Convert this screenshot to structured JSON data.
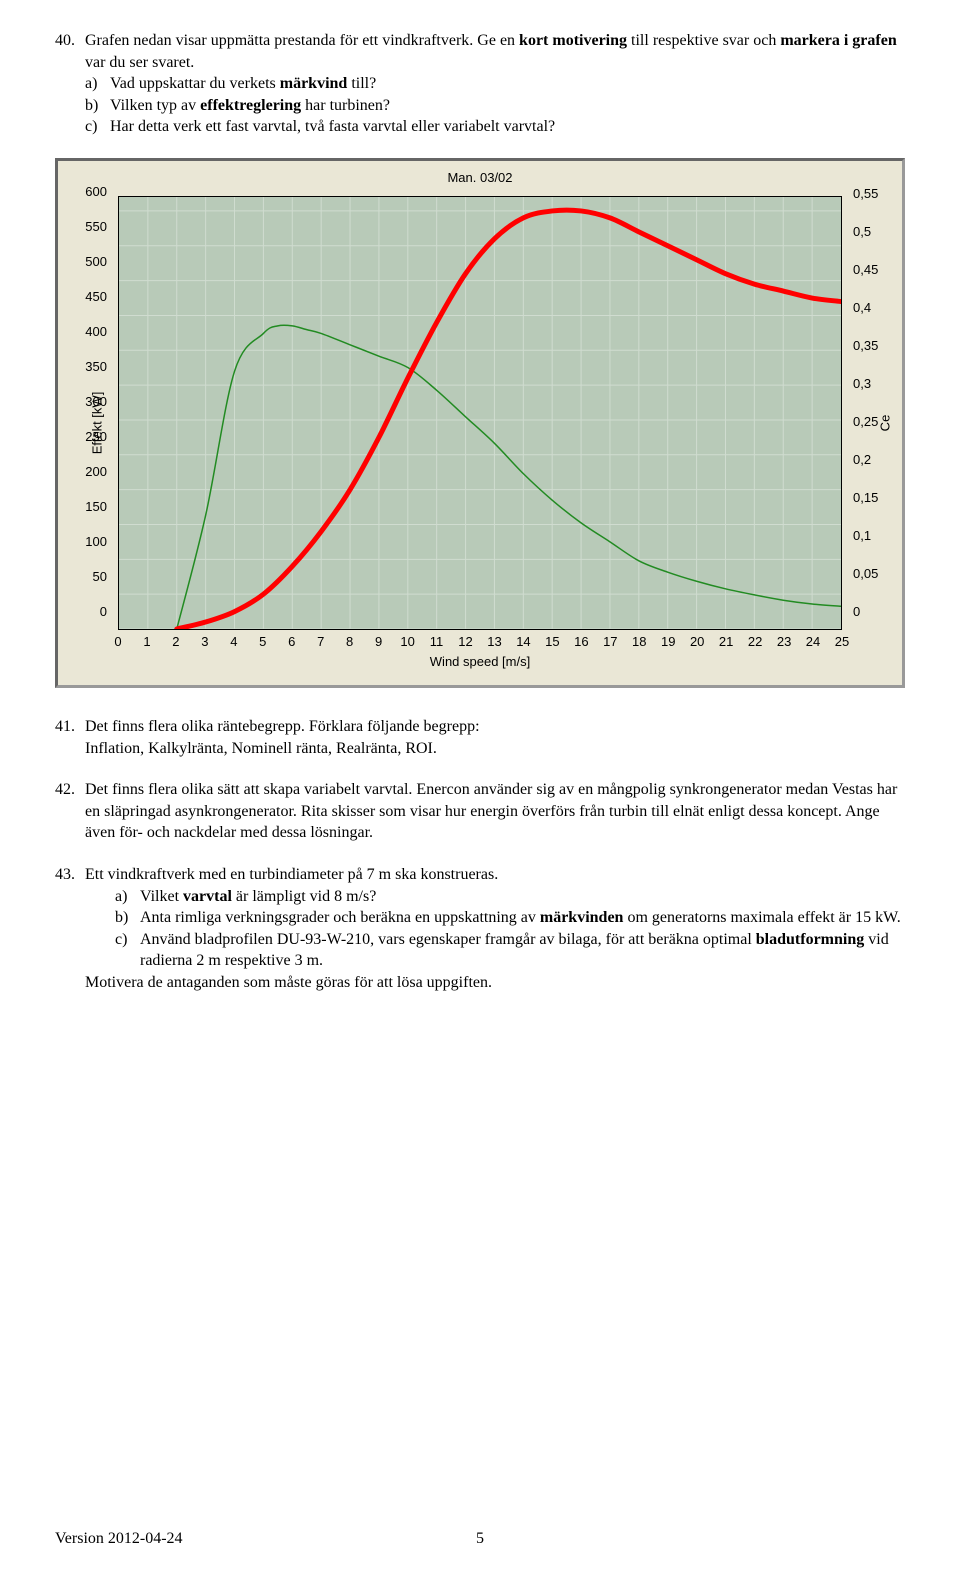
{
  "q40": {
    "num": "40.",
    "text_before": "Grafen nedan visar uppmätta prestanda för ett vindkraftverk. Ge en ",
    "bold1": "kort motivering",
    "text_mid": " till respektive svar och ",
    "bold2": "markera i grafen",
    "text_after": " var du ser svaret.",
    "a_letter": "a)",
    "a_before": "Vad uppskattar du verkets ",
    "a_bold": "märkvind",
    "a_after": " till?",
    "b_letter": "b)",
    "b_before": "Vilken typ av ",
    "b_bold": "effektreglering",
    "b_after": " har turbinen?",
    "c_letter": "c)",
    "c_text": "Har detta verk ett fast varvtal, två fasta varvtal eller variabelt varvtal?"
  },
  "chart": {
    "title": "Man. 03/02",
    "x_label": "Wind speed [m/s]",
    "y_left_label": "Effekt [kW]",
    "y_right_label": "Ce",
    "background_color": "#b8cab8",
    "panel_color": "#eae7d6",
    "grid_color": "#d0dcd0",
    "x_ticks": [
      0,
      1,
      2,
      3,
      4,
      5,
      6,
      7,
      8,
      9,
      10,
      11,
      12,
      13,
      14,
      15,
      16,
      17,
      18,
      19,
      20,
      21,
      22,
      23,
      24,
      25
    ],
    "xlim": [
      0,
      25
    ],
    "y_left_ticks": [
      0,
      50,
      100,
      150,
      200,
      250,
      300,
      350,
      400,
      450,
      500,
      550,
      600
    ],
    "y_left_lim": [
      0,
      620
    ],
    "y_right_ticks": [
      0,
      0.05,
      0.1,
      0.15,
      0.2,
      0.25,
      0.3,
      0.35,
      0.4,
      0.45,
      0.5,
      0.55
    ],
    "y_right_lim": [
      0,
      0.57
    ],
    "y_right_labels": [
      "0",
      "0,05",
      "0,1",
      "0,15",
      "0,2",
      "0,25",
      "0,3",
      "0,35",
      "0,4",
      "0,45",
      "0,5",
      "0,55"
    ],
    "series_effekt": {
      "color": "#ff0000",
      "width": 5,
      "x": [
        2,
        3,
        4,
        5,
        6,
        7,
        8,
        9,
        10,
        11,
        12,
        13,
        14,
        15,
        16,
        17,
        18,
        19,
        20,
        21,
        22,
        23,
        24,
        25
      ],
      "y": [
        0,
        10,
        25,
        50,
        90,
        140,
        200,
        275,
        360,
        440,
        510,
        560,
        590,
        600,
        600,
        590,
        570,
        550,
        530,
        510,
        495,
        485,
        475,
        470
      ]
    },
    "series_ce": {
      "color": "#228b22",
      "width": 1.5,
      "x": [
        2,
        3,
        4,
        5,
        5.5,
        6,
        6.5,
        7,
        8,
        9,
        10,
        11,
        12,
        13,
        14,
        15,
        16,
        17,
        18,
        19,
        20,
        21,
        22,
        23,
        24,
        25
      ],
      "y": [
        0,
        0.15,
        0.34,
        0.39,
        0.4,
        0.4,
        0.395,
        0.39,
        0.375,
        0.36,
        0.345,
        0.315,
        0.28,
        0.245,
        0.205,
        0.17,
        0.14,
        0.115,
        0.09,
        0.075,
        0.063,
        0.053,
        0.045,
        0.038,
        0.033,
        0.03
      ]
    }
  },
  "q41": {
    "num": "41.",
    "text1": "Det finns flera olika räntebegrepp. Förklara följande begrepp:",
    "text2": "Inflation, Kalkylränta, Nominell ränta, Realränta, ROI."
  },
  "q42": {
    "num": "42.",
    "text": "Det finns flera olika sätt att skapa variabelt varvtal. Enercon använder sig av en mångpolig synkrongenerator medan Vestas har en släpringad asynkrongenerator. Rita skisser som visar hur energin överförs från turbin till elnät enligt dessa koncept. Ange även för- och nackdelar med dessa lösningar."
  },
  "q43": {
    "num": "43.",
    "intro": "Ett vindkraftverk med en turbindiameter på 7 m ska konstrueras.",
    "a_letter": "a)",
    "a_before": "Vilket ",
    "a_bold": "varvtal",
    "a_after": " är lämpligt vid 8 m/s?",
    "b_letter": "b)",
    "b_before": "Anta rimliga verkningsgrader och beräkna en uppskattning av ",
    "b_bold": "märkvinden",
    "b_after": " om generatorns maximala effekt är 15 kW.",
    "c_letter": "c)",
    "c_before": "Använd bladprofilen DU-93-W-210, vars egenskaper framgår av bilaga, för att beräkna optimal ",
    "c_bold": "bladutformning",
    "c_after": " vid radierna 2 m respektive 3 m.",
    "last": "Motivera de antaganden som måste göras för att lösa uppgiften."
  },
  "footer": {
    "version": "Version 2012-04-24",
    "page": "5"
  }
}
